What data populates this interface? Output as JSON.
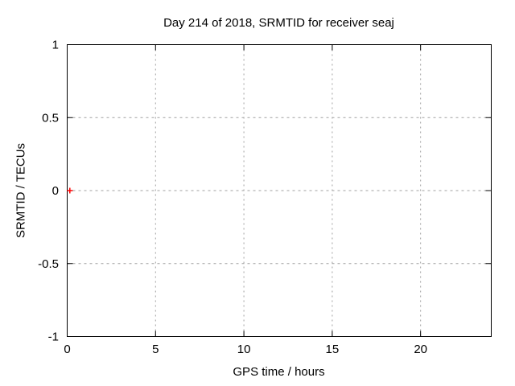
{
  "page": {
    "background": "#ffffff"
  },
  "chart_data": {
    "type": "scatter",
    "title": "Day 214 of 2018, SRMTID for receiver seaj",
    "xlabel": "GPS time / hours",
    "ylabel": "SRMTID / TECUs",
    "xlim": [
      0,
      24
    ],
    "ylim": [
      -1,
      1
    ],
    "xticks": {
      "values": [
        0,
        5,
        10,
        15,
        20
      ],
      "labels": [
        "0",
        "5",
        "10",
        "15",
        "20"
      ]
    },
    "yticks": {
      "values": [
        -1,
        -0.5,
        0,
        0.5,
        1
      ],
      "labels": [
        "-1",
        "-0.5",
        "0",
        "0.5",
        "1"
      ]
    },
    "grid": true,
    "legend": "none",
    "series": [
      {
        "name": "SRMTID",
        "marker": "plus",
        "color": "#ff0000",
        "points": [
          {
            "x": 0.15,
            "y": 0.0
          }
        ]
      }
    ],
    "colors": {
      "axis": "#000000",
      "grid": "#a0a0a0",
      "text": "#000000"
    }
  }
}
